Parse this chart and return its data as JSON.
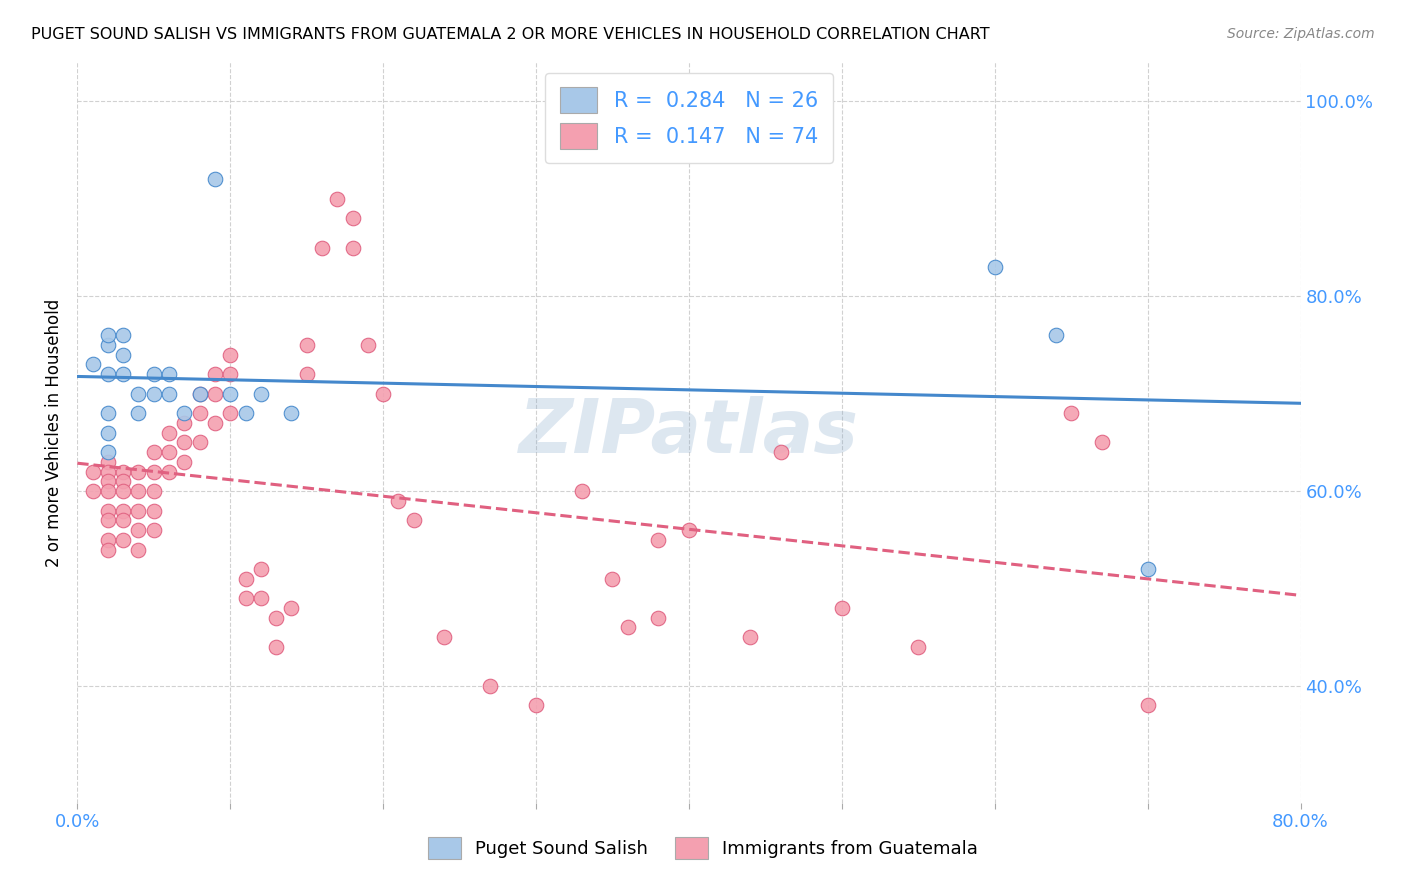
{
  "title": "PUGET SOUND SALISH VS IMMIGRANTS FROM GUATEMALA 2 OR MORE VEHICLES IN HOUSEHOLD CORRELATION CHART",
  "source": "Source: ZipAtlas.com",
  "ylabel_label": "2 or more Vehicles in Household",
  "xmin": 0.0,
  "xmax": 0.8,
  "ymin": 0.28,
  "ymax": 1.04,
  "blue_color": "#a8c8e8",
  "pink_color": "#f4a0b0",
  "blue_line_color": "#4488cc",
  "pink_line_color": "#e06080",
  "label_color": "#4499ff",
  "watermark": "ZIPatlas",
  "blue_scatter_x": [
    0.01,
    0.02,
    0.02,
    0.02,
    0.02,
    0.02,
    0.02,
    0.03,
    0.03,
    0.03,
    0.04,
    0.04,
    0.05,
    0.05,
    0.06,
    0.06,
    0.07,
    0.08,
    0.09,
    0.1,
    0.11,
    0.12,
    0.14,
    0.6,
    0.64,
    0.7
  ],
  "blue_scatter_y": [
    0.73,
    0.75,
    0.76,
    0.72,
    0.68,
    0.66,
    0.64,
    0.76,
    0.74,
    0.72,
    0.7,
    0.68,
    0.72,
    0.7,
    0.72,
    0.7,
    0.68,
    0.7,
    0.92,
    0.7,
    0.68,
    0.7,
    0.68,
    0.83,
    0.76,
    0.52
  ],
  "pink_scatter_x": [
    0.01,
    0.01,
    0.02,
    0.02,
    0.02,
    0.02,
    0.02,
    0.02,
    0.02,
    0.02,
    0.03,
    0.03,
    0.03,
    0.03,
    0.03,
    0.03,
    0.04,
    0.04,
    0.04,
    0.04,
    0.04,
    0.05,
    0.05,
    0.05,
    0.05,
    0.05,
    0.06,
    0.06,
    0.06,
    0.07,
    0.07,
    0.07,
    0.08,
    0.08,
    0.08,
    0.09,
    0.09,
    0.09,
    0.1,
    0.1,
    0.1,
    0.11,
    0.11,
    0.12,
    0.12,
    0.13,
    0.13,
    0.14,
    0.15,
    0.15,
    0.16,
    0.17,
    0.18,
    0.18,
    0.19,
    0.2,
    0.21,
    0.22,
    0.24,
    0.27,
    0.3,
    0.33,
    0.35,
    0.36,
    0.38,
    0.38,
    0.4,
    0.44,
    0.46,
    0.5,
    0.55,
    0.65,
    0.67,
    0.7
  ],
  "pink_scatter_y": [
    0.62,
    0.6,
    0.63,
    0.62,
    0.61,
    0.6,
    0.58,
    0.57,
    0.55,
    0.54,
    0.62,
    0.61,
    0.6,
    0.58,
    0.57,
    0.55,
    0.62,
    0.6,
    0.58,
    0.56,
    0.54,
    0.64,
    0.62,
    0.6,
    0.58,
    0.56,
    0.66,
    0.64,
    0.62,
    0.67,
    0.65,
    0.63,
    0.7,
    0.68,
    0.65,
    0.72,
    0.7,
    0.67,
    0.74,
    0.72,
    0.68,
    0.51,
    0.49,
    0.52,
    0.49,
    0.47,
    0.44,
    0.48,
    0.75,
    0.72,
    0.85,
    0.9,
    0.88,
    0.85,
    0.75,
    0.7,
    0.59,
    0.57,
    0.45,
    0.4,
    0.38,
    0.6,
    0.51,
    0.46,
    0.55,
    0.47,
    0.56,
    0.45,
    0.64,
    0.48,
    0.44,
    0.68,
    0.65,
    0.38
  ],
  "blue_R": 0.284,
  "blue_N": 26,
  "pink_R": 0.147,
  "pink_N": 74,
  "legend1_R": "0.284",
  "legend1_N": "26",
  "legend2_R": "0.147",
  "legend2_N": "74"
}
